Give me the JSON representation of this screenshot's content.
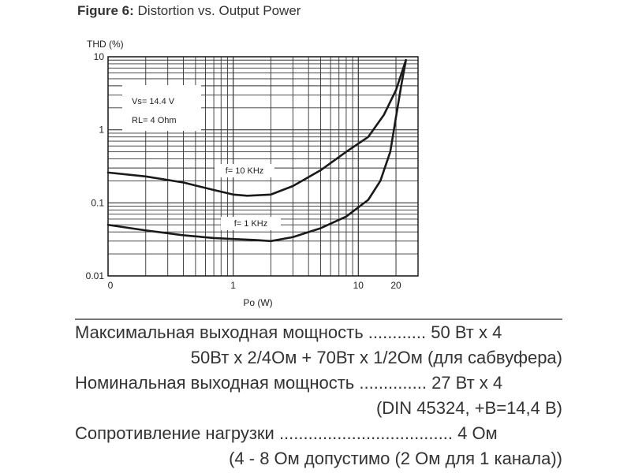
{
  "figure": {
    "label": "Figure 6:",
    "title": "Distortion vs. Output Power"
  },
  "chart_data": {
    "type": "line",
    "ylabel": "THD (%)",
    "xlabel": "Po (W)",
    "yscale": "log",
    "xscale": "log",
    "ylim": [
      0.01,
      10
    ],
    "xlim": [
      0.1,
      30
    ],
    "y_ticks": [
      "10",
      "1",
      "0.1",
      "0.01"
    ],
    "x_ticks": [
      "0",
      "1",
      "10",
      "20"
    ],
    "grid": true,
    "annotations": [
      "Vs= 14.4 V",
      "RL= 4 Ohm"
    ],
    "series": [
      {
        "name": "f= 10 KHz",
        "x": [
          0.1,
          0.2,
          0.4,
          0.7,
          1,
          1.3,
          2,
          3,
          5,
          8,
          12,
          16,
          20,
          24
        ],
        "y": [
          0.26,
          0.23,
          0.19,
          0.15,
          0.13,
          0.125,
          0.13,
          0.17,
          0.28,
          0.5,
          0.8,
          1.6,
          3.5,
          9
        ]
      },
      {
        "name": "f= 1 KHz",
        "x": [
          0.1,
          0.2,
          0.4,
          0.7,
          1,
          1.5,
          2,
          3,
          5,
          8,
          12,
          15,
          18,
          20,
          22,
          24
        ],
        "y": [
          0.05,
          0.042,
          0.036,
          0.033,
          0.032,
          0.031,
          0.03,
          0.034,
          0.045,
          0.065,
          0.11,
          0.2,
          0.5,
          1.5,
          4,
          9
        ]
      }
    ]
  },
  "specs": [
    {
      "text": "Максимальная выходная мощность ............ 50 Вт х 4",
      "align": "left"
    },
    {
      "text": "50Вт х 2/4Ом + 70Вт х 1/2Ом (для сабвуфера)",
      "align": "right"
    },
    {
      "text": "Номинальная выходная мощность .............. 27 Вт х 4",
      "align": "left"
    },
    {
      "text": "(DIN 45324, +B=14,4 B)",
      "align": "right"
    },
    {
      "text": "Сопротивление нагрузки .................................... 4 Ом",
      "align": "left"
    },
    {
      "text": "(4 - 8 Ом допустимо (2 Ом для 1 канала))",
      "align": "right"
    }
  ]
}
